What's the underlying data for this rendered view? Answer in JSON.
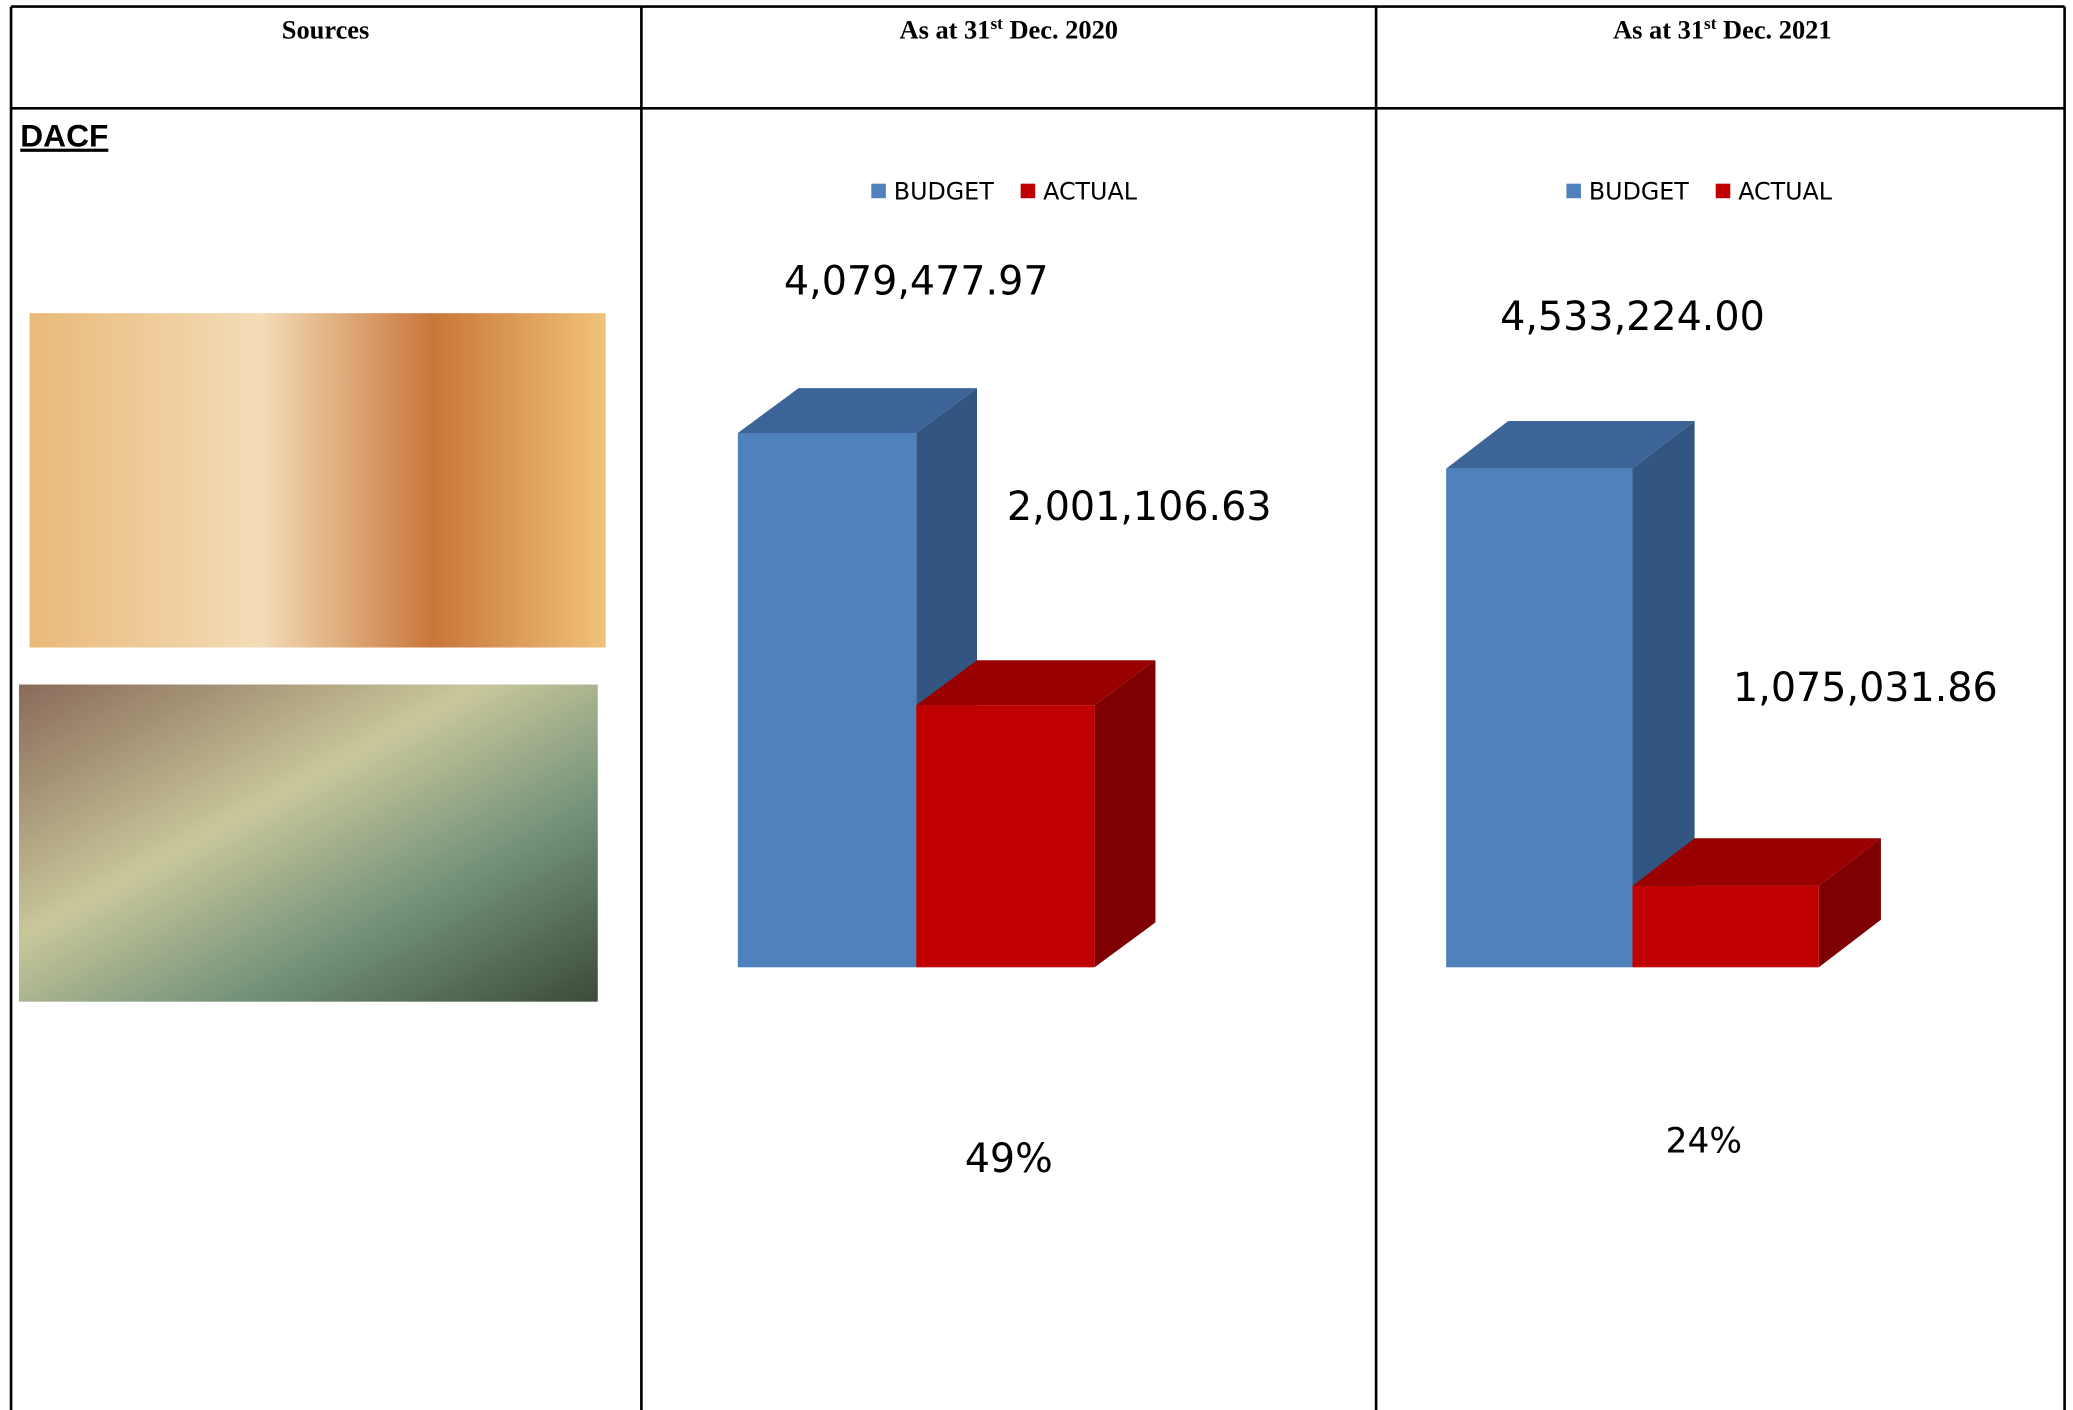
{
  "table": {
    "headers": [
      {
        "text": "Sources"
      },
      {
        "prefix": "As at 31",
        "sup": "st",
        "suffix": " Dec. 2020"
      },
      {
        "prefix": "As at 31",
        "sup": "st",
        "suffix": " Dec. 2021"
      }
    ],
    "row_label": "DACF"
  },
  "chart_data": [
    {
      "type": "bar",
      "ylim": [
        0,
        4500000
      ],
      "annotation": "49%",
      "series": [
        {
          "name": "BUDGET",
          "color": "#4f81bd",
          "side": "#335581",
          "top": "#3d6496",
          "values": [
            4079477.97
          ],
          "value_labels": [
            "4,079,477.97"
          ]
        },
        {
          "name": "ACTUAL",
          "color": "#c00000",
          "side": "#7f0000",
          "top": "#990000",
          "values": [
            2001106.63
          ],
          "value_labels": [
            "2,001,106.63"
          ]
        }
      ]
    },
    {
      "type": "bar",
      "ylim": [
        400000,
        5000000
      ],
      "annotation": "24%",
      "series": [
        {
          "name": "BUDGET",
          "color": "#4f81bd",
          "side": "#335581",
          "top": "#3d6496",
          "values": [
            4533224.0
          ],
          "value_labels": [
            "4,533,224.00"
          ]
        },
        {
          "name": "ACTUAL",
          "color": "#c00000",
          "side": "#7f0000",
          "top": "#990000",
          "values": [
            1075031.86
          ],
          "value_labels": [
            "1,075,031.86"
          ]
        }
      ]
    }
  ]
}
